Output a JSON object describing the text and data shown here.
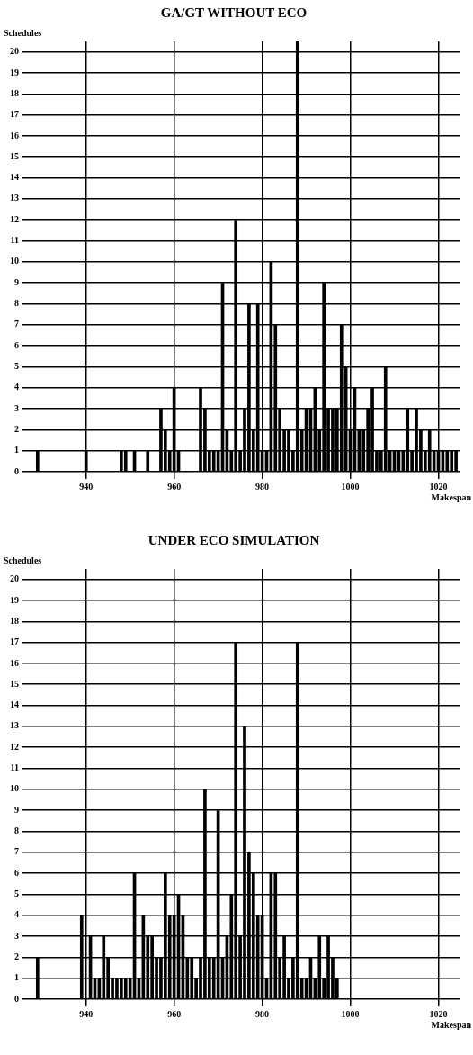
{
  "chart_data": [
    {
      "type": "bar",
      "title": "GA/GT WITHOUT ECO",
      "xlabel": "Makespan",
      "ylabel": "Schedules",
      "grid": true,
      "xlim": [
        927,
        1025
      ],
      "xticks": [
        940,
        960,
        980,
        1000,
        1020
      ],
      "ylim": [
        0,
        20.5
      ],
      "yticks": [
        0,
        1,
        2,
        3,
        4,
        5,
        6,
        7,
        8,
        9,
        10,
        11,
        12,
        13,
        14,
        15,
        16,
        17,
        18,
        19,
        20
      ],
      "x": [
        929,
        940,
        948,
        949,
        951,
        954,
        957,
        958,
        959,
        960,
        961,
        966,
        967,
        968,
        969,
        970,
        971,
        972,
        973,
        974,
        975,
        976,
        977,
        978,
        979,
        980,
        981,
        982,
        983,
        984,
        985,
        986,
        987,
        988,
        989,
        990,
        991,
        992,
        993,
        994,
        995,
        996,
        997,
        998,
        999,
        1000,
        1001,
        1002,
        1003,
        1004,
        1005,
        1006,
        1007,
        1008,
        1009,
        1010,
        1011,
        1012,
        1013,
        1014,
        1015,
        1016,
        1017,
        1018,
        1019,
        1020,
        1021,
        1022,
        1023,
        1024
      ],
      "series": [
        {
          "color": "#000000",
          "values": [
            1,
            1,
            1,
            1,
            1,
            1,
            3,
            2,
            1,
            4,
            1,
            4,
            3,
            1,
            1,
            1,
            9,
            2,
            1,
            12,
            1,
            3,
            8,
            2,
            8,
            1,
            1,
            10,
            7,
            3,
            2,
            2,
            1,
            20.5,
            2,
            3,
            3,
            4,
            2,
            9,
            3,
            3,
            3,
            7,
            5,
            2,
            4,
            2,
            2,
            3,
            4,
            1,
            1,
            5,
            1,
            1,
            1,
            1,
            3,
            1,
            3,
            2,
            1,
            2,
            1,
            1,
            1,
            1,
            1,
            1
          ]
        }
      ]
    },
    {
      "type": "bar",
      "title": "UNDER ECO SIMULATION",
      "xlabel": "Makespan",
      "ylabel": "Schedules",
      "grid": true,
      "xlim": [
        927,
        1025
      ],
      "xticks": [
        940,
        960,
        980,
        1000,
        1020
      ],
      "ylim": [
        0,
        20.5
      ],
      "yticks": [
        0,
        1,
        2,
        3,
        4,
        5,
        6,
        7,
        8,
        9,
        10,
        11,
        12,
        13,
        14,
        15,
        16,
        17,
        18,
        19,
        20
      ],
      "x": [
        929,
        939,
        941,
        942,
        943,
        944,
        945,
        946,
        947,
        948,
        949,
        950,
        951,
        952,
        953,
        954,
        955,
        956,
        957,
        958,
        959,
        960,
        961,
        962,
        963,
        964,
        965,
        966,
        967,
        968,
        969,
        970,
        971,
        972,
        973,
        974,
        975,
        976,
        977,
        978,
        979,
        980,
        981,
        982,
        983,
        984,
        985,
        986,
        987,
        988,
        989,
        990,
        991,
        992,
        993,
        994,
        995,
        996,
        997
      ],
      "series": [
        {
          "color": "#000000",
          "values": [
            2,
            4,
            3,
            1,
            1,
            3,
            2,
            1,
            1,
            1,
            1,
            1,
            6,
            1,
            4,
            3,
            3,
            2,
            2,
            6,
            4,
            4,
            5,
            4,
            2,
            2,
            1,
            2,
            10,
            2,
            2,
            9,
            2,
            3,
            5,
            17,
            3,
            13,
            7,
            6,
            4,
            4,
            1,
            6,
            6,
            2,
            3,
            1,
            2,
            17,
            1,
            1,
            2,
            1,
            3,
            1,
            3,
            2,
            1
          ]
        }
      ]
    }
  ]
}
